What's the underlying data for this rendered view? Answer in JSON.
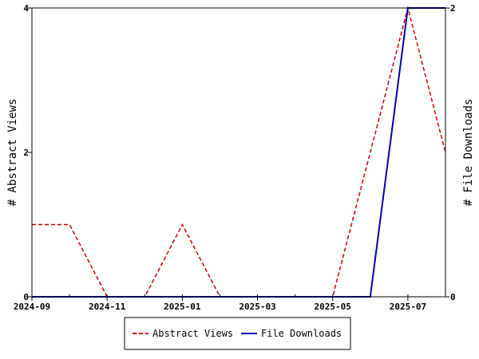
{
  "chart_data": {
    "type": "line",
    "xlabel": "",
    "ylabel": "# Abstract Views",
    "y2label": "# File Downloads",
    "x_ticks": [
      "2024-09",
      "2024-11",
      "2025-01",
      "2025-03",
      "2025-05",
      "2025-07"
    ],
    "x": [
      "2024-09",
      "2024-10",
      "2024-11",
      "2024-12",
      "2025-01",
      "2025-02",
      "2025-03",
      "2025-04",
      "2025-05",
      "2025-06",
      "2025-07",
      "2025-08"
    ],
    "xlim": [
      "2024-09",
      "2025-08"
    ],
    "ylim": [
      0,
      4
    ],
    "y_ticks": [
      0,
      2,
      4
    ],
    "y2lim": [
      0,
      2
    ],
    "y2_ticks": [
      0,
      2
    ],
    "grid": false,
    "legend_position": "bottom",
    "series": [
      {
        "name": "Abstract Views",
        "axis": "left",
        "color": "#cc0000",
        "style": "dashed",
        "values": [
          1,
          1,
          0,
          0,
          1,
          0,
          0,
          0,
          0,
          2,
          4,
          2
        ]
      },
      {
        "name": "File Downloads",
        "axis": "right",
        "color": "#0000aa",
        "style": "solid",
        "values": [
          0,
          0,
          0,
          0,
          0,
          0,
          0,
          0,
          0,
          0,
          2,
          2
        ]
      }
    ]
  }
}
